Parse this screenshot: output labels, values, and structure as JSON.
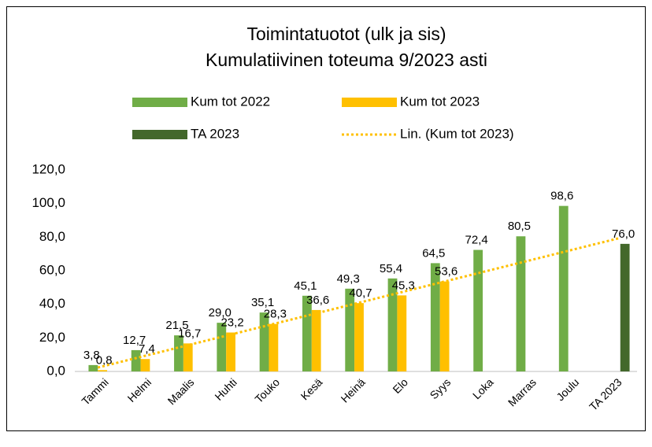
{
  "chart_data": {
    "type": "bar",
    "title": [
      "Toimintatuotot (ulk ja sis)",
      "Kumulatiivinen toteuma 9/2023 asti"
    ],
    "categories": [
      "Tammi",
      "Helmi",
      "Maalis",
      "Huhti",
      "Touko",
      "Kesä",
      "Heinä",
      "Elo",
      "Syys",
      "Loka",
      "Marras",
      "Joulu",
      "TA 2023"
    ],
    "series": [
      {
        "name": "Kum tot 2022",
        "color": "#70ad47",
        "values": [
          3.8,
          12.7,
          21.5,
          29.0,
          35.1,
          45.1,
          49.3,
          55.4,
          64.5,
          72.4,
          80.5,
          98.6,
          null
        ],
        "value_labels": [
          "3,8",
          "12,7",
          "21,5",
          "29,0",
          "35,1",
          "45,1",
          "49,3",
          "55,4",
          "64,5",
          "72,4",
          "80,5",
          "98,6",
          null
        ]
      },
      {
        "name": "Kum tot 2023",
        "color": "#ffc000",
        "values": [
          0.8,
          7.4,
          16.7,
          23.2,
          28.3,
          36.6,
          40.7,
          45.3,
          53.6,
          null,
          null,
          null,
          null
        ],
        "value_labels": [
          "0,8",
          "7,4",
          "16,7",
          "23,2",
          "28,3",
          "36,6",
          "40,7",
          "45,3",
          "53,6",
          null,
          null,
          null,
          null
        ],
        "trendline": {
          "name": "Lin. (Kum tot 2023)",
          "color": "#ffc000"
        }
      },
      {
        "name": "TA 2023",
        "color": "#43682b",
        "values": [
          null,
          null,
          null,
          null,
          null,
          null,
          null,
          null,
          null,
          null,
          null,
          null,
          76.0
        ],
        "value_labels": [
          null,
          null,
          null,
          null,
          null,
          null,
          null,
          null,
          null,
          null,
          null,
          null,
          "76,0"
        ]
      }
    ],
    "ylim": [
      0,
      120
    ],
    "yticks": [
      {
        "value": 0,
        "label": "0,0"
      },
      {
        "value": 20,
        "label": "20,0"
      },
      {
        "value": 40,
        "label": "40,0"
      },
      {
        "value": 60,
        "label": "60,0"
      },
      {
        "value": 80,
        "label": "80,0"
      },
      {
        "value": 100,
        "label": "100,0"
      },
      {
        "value": 120,
        "label": "120,0"
      }
    ],
    "grid": false
  }
}
